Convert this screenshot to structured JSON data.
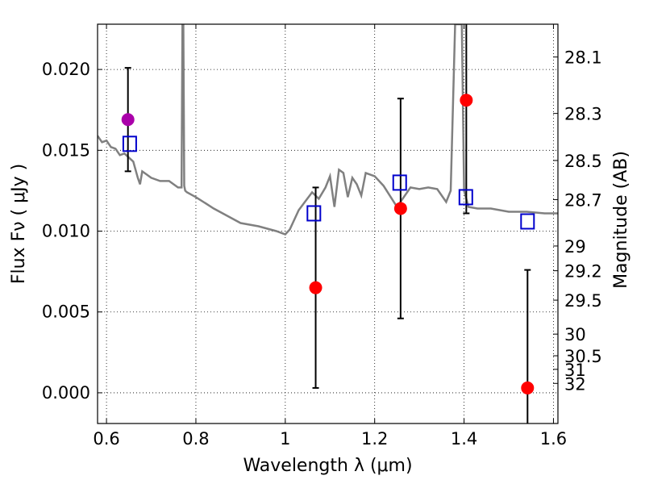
{
  "chart_data": {
    "type": "scatter",
    "title": "",
    "xlabel": "Wavelength  λ (μm)",
    "ylabel": "Flux  Fν  ( μJy )",
    "ylabel_right": "Magnitude (AB)",
    "xlim": [
      0.58,
      1.61
    ],
    "ylim": [
      -0.0019,
      0.0228
    ],
    "grid": true,
    "x_ticks": [
      {
        "value": 0.6,
        "label": "0.6"
      },
      {
        "value": 0.8,
        "label": "0.8"
      },
      {
        "value": 1.0,
        "label": "1"
      },
      {
        "value": 1.2,
        "label": "1.2"
      },
      {
        "value": 1.4,
        "label": "1.4"
      },
      {
        "value": 1.6,
        "label": "1.6"
      }
    ],
    "y_ticks": [
      {
        "value": 0.0,
        "label": "0.000"
      },
      {
        "value": 0.005,
        "label": "0.005"
      },
      {
        "value": 0.01,
        "label": "0.010"
      },
      {
        "value": 0.015,
        "label": "0.015"
      },
      {
        "value": 0.02,
        "label": "0.020"
      }
    ],
    "mag_ticks": [
      {
        "label": "28.1",
        "flux": 0.02077
      },
      {
        "label": "28.3",
        "flux": 0.01728
      },
      {
        "label": "28.5",
        "flux": 0.01437
      },
      {
        "label": "28.7",
        "flux": 0.01195
      },
      {
        "label": "29",
        "flux": 0.00908
      },
      {
        "label": "29.2",
        "flux": 0.00755
      },
      {
        "label": "29.5",
        "flux": 0.00573
      },
      {
        "label": "30",
        "flux": 0.00363
      },
      {
        "label": "30.5",
        "flux": 0.00229
      },
      {
        "label": "31",
        "flux": 0.00145
      },
      {
        "label": "32",
        "flux": 0.00058
      }
    ],
    "model_spectrum": {
      "color": "#808080",
      "x": [
        0.58,
        0.59,
        0.6,
        0.61,
        0.62,
        0.63,
        0.64,
        0.66,
        0.67,
        0.675,
        0.68,
        0.69,
        0.7,
        0.72,
        0.74,
        0.76,
        0.768,
        0.77,
        0.772,
        0.774,
        0.776,
        0.78,
        0.8,
        0.84,
        0.88,
        0.9,
        0.94,
        0.98,
        1.0,
        1.01,
        1.03,
        1.06,
        1.075,
        1.09,
        1.1,
        1.11,
        1.12,
        1.13,
        1.14,
        1.15,
        1.16,
        1.17,
        1.18,
        1.2,
        1.22,
        1.25,
        1.28,
        1.3,
        1.32,
        1.34,
        1.36,
        1.37,
        1.38,
        1.39,
        1.395,
        1.4,
        1.41,
        1.43,
        1.46,
        1.5,
        1.54,
        1.58,
        1.61
      ],
      "y": [
        0.0159,
        0.0155,
        0.0156,
        0.0152,
        0.0151,
        0.0147,
        0.0148,
        0.0143,
        0.0133,
        0.0129,
        0.0137,
        0.0135,
        0.0133,
        0.0131,
        0.0131,
        0.0127,
        0.0127,
        0.0228,
        0.0228,
        0.0128,
        0.0125,
        0.0124,
        0.0121,
        0.0114,
        0.0108,
        0.0105,
        0.0103,
        0.01,
        0.0098,
        0.0101,
        0.0113,
        0.0124,
        0.012,
        0.0127,
        0.0134,
        0.0115,
        0.0138,
        0.0136,
        0.0121,
        0.0133,
        0.0129,
        0.0122,
        0.0136,
        0.0134,
        0.0128,
        0.0115,
        0.0127,
        0.0126,
        0.0127,
        0.0126,
        0.0118,
        0.0125,
        0.0228,
        0.0228,
        0.0228,
        0.0125,
        0.0115,
        0.0114,
        0.0114,
        0.0112,
        0.0112,
        0.0111,
        0.0111
      ]
    },
    "series": [
      {
        "marker": "circle",
        "color": "#ff0000",
        "points": [
          {
            "x": 1.068,
            "y": 0.0065,
            "ylo": 0.0003,
            "yhi": 0.0127
          },
          {
            "x": 1.258,
            "y": 0.0114,
            "ylo": 0.0046,
            "yhi": 0.0182
          },
          {
            "x": 1.405,
            "y": 0.0181,
            "ylo": 0.0111,
            "yhi": 0.0228
          },
          {
            "x": 1.542,
            "y": 0.0003,
            "ylo": -0.0019,
            "yhi": 0.0076
          }
        ]
      },
      {
        "marker": "circle",
        "color": "#aa00aa",
        "points": [
          {
            "x": 0.648,
            "y": 0.0169,
            "ylo": 0.0137,
            "yhi": 0.0201
          }
        ]
      },
      {
        "marker": "square",
        "color": "#0000cc",
        "points": [
          {
            "x": 0.652,
            "y": 0.0154
          },
          {
            "x": 1.064,
            "y": 0.0111
          },
          {
            "x": 1.256,
            "y": 0.013
          },
          {
            "x": 1.404,
            "y": 0.0121
          },
          {
            "x": 1.542,
            "y": 0.0106
          }
        ]
      }
    ]
  }
}
